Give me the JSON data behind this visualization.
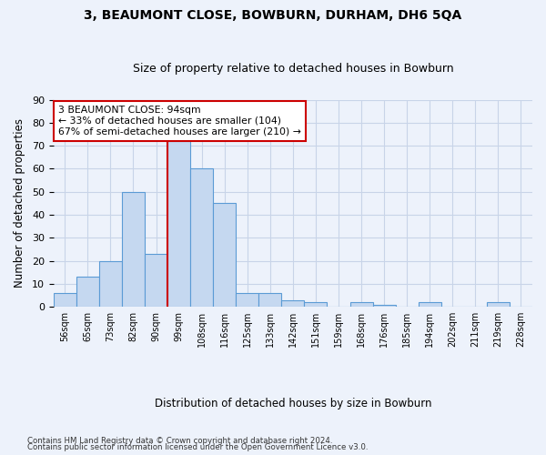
{
  "title1": "3, BEAUMONT CLOSE, BOWBURN, DURHAM, DH6 5QA",
  "title2": "Size of property relative to detached houses in Bowburn",
  "xlabel": "Distribution of detached houses by size in Bowburn",
  "ylabel": "Number of detached properties",
  "bin_labels": [
    "56sqm",
    "65sqm",
    "73sqm",
    "82sqm",
    "90sqm",
    "99sqm",
    "108sqm",
    "116sqm",
    "125sqm",
    "133sqm",
    "142sqm",
    "151sqm",
    "159sqm",
    "168sqm",
    "176sqm",
    "185sqm",
    "194sqm",
    "202sqm",
    "211sqm",
    "219sqm",
    "228sqm"
  ],
  "bar_heights": [
    6,
    13,
    20,
    50,
    23,
    72,
    60,
    45,
    6,
    6,
    3,
    2,
    0,
    2,
    1,
    0,
    2,
    0,
    0,
    2,
    0
  ],
  "bar_color": "#c5d8f0",
  "bar_edge_color": "#5b9bd5",
  "property_size_idx": 5,
  "vline_color": "#cc0000",
  "annotation_line1": "3 BEAUMONT CLOSE: 94sqm",
  "annotation_line2": "← 33% of detached houses are smaller (104)",
  "annotation_line3": "67% of semi-detached houses are larger (210) →",
  "annotation_box_color": "#ffffff",
  "annotation_box_edge": "#cc0000",
  "ylim": [
    0,
    90
  ],
  "yticks": [
    0,
    10,
    20,
    30,
    40,
    50,
    60,
    70,
    80,
    90
  ],
  "grid_color": "#c8d4e8",
  "footnote1": "Contains HM Land Registry data © Crown copyright and database right 2024.",
  "footnote2": "Contains public sector information licensed under the Open Government Licence v3.0.",
  "bg_color": "#edf2fb",
  "title1_fontsize": 10,
  "title2_fontsize": 9
}
